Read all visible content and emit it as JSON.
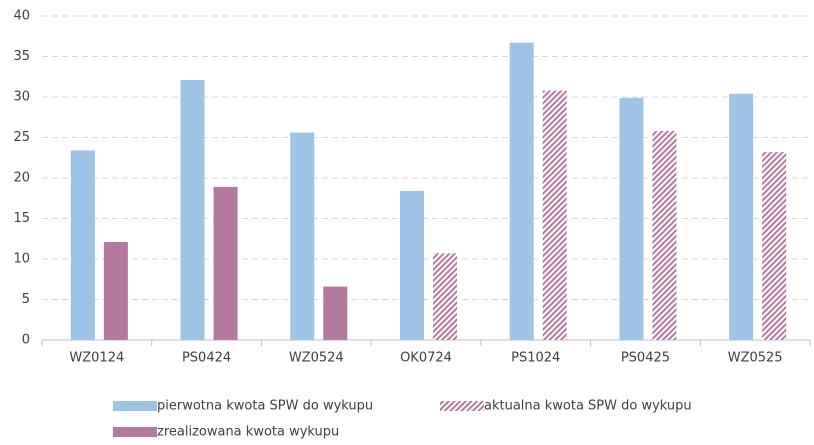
{
  "chart_data": {
    "type": "bar",
    "categories": [
      "WZ0124",
      "PS0424",
      "WZ0524",
      "OK0724",
      "PS1024",
      "PS0425",
      "WZ0525"
    ],
    "series": [
      {
        "name": "pierwotna kwota SPW do wykupu",
        "color": "#9dc3e6",
        "values": [
          23.4,
          32.1,
          25.6,
          18.4,
          36.7,
          29.9,
          30.4
        ]
      },
      {
        "name": "aktualna kwota SPW do wykupu",
        "color": "#b5799f",
        "hatch": true,
        "values": [
          null,
          null,
          null,
          10.7,
          30.8,
          25.8,
          23.2
        ]
      },
      {
        "name": "zrealizowana kwota wykupu",
        "color": "#b5799f",
        "values": [
          12.1,
          18.9,
          6.6,
          null,
          null,
          null,
          null
        ]
      }
    ],
    "ylim": [
      0,
      40
    ],
    "yticks": [
      0,
      5,
      10,
      15,
      20,
      25,
      30,
      35,
      40
    ],
    "grid": true
  }
}
